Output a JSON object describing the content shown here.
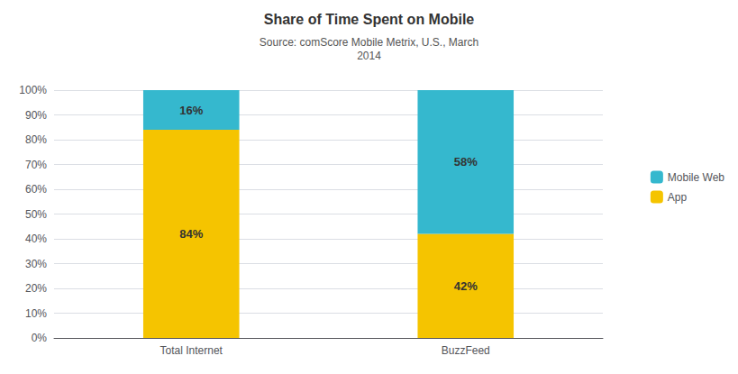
{
  "chart_data": {
    "type": "bar",
    "title": "Share of Time Spent on Mobile",
    "subtitle": "Source: comScore Mobile Metrix, U.S., March\n2014",
    "categories": [
      "Total Internet",
      "BuzzFeed"
    ],
    "series": [
      {
        "name": "App",
        "color": "#F5C400",
        "values": [
          84,
          42
        ],
        "value_labels": [
          "84%",
          "42%"
        ]
      },
      {
        "name": "Mobile Web",
        "color": "#35B8CE",
        "values": [
          16,
          58
        ],
        "value_labels": [
          "16%",
          "58%"
        ]
      }
    ],
    "stacked": true,
    "data_labels": true,
    "ylim": [
      0,
      100
    ],
    "yticks": [
      {
        "value": 0,
        "label": "0%"
      },
      {
        "value": 10,
        "label": "10%"
      },
      {
        "value": 20,
        "label": "20%"
      },
      {
        "value": 30,
        "label": "30%"
      },
      {
        "value": 40,
        "label": "40%"
      },
      {
        "value": 50,
        "label": "50%"
      },
      {
        "value": 60,
        "label": "60%"
      },
      {
        "value": 70,
        "label": "70%"
      },
      {
        "value": 80,
        "label": "80%"
      },
      {
        "value": 90,
        "label": "90%"
      },
      {
        "value": 100,
        "label": "100%"
      }
    ],
    "grid": true,
    "legend": "right"
  }
}
